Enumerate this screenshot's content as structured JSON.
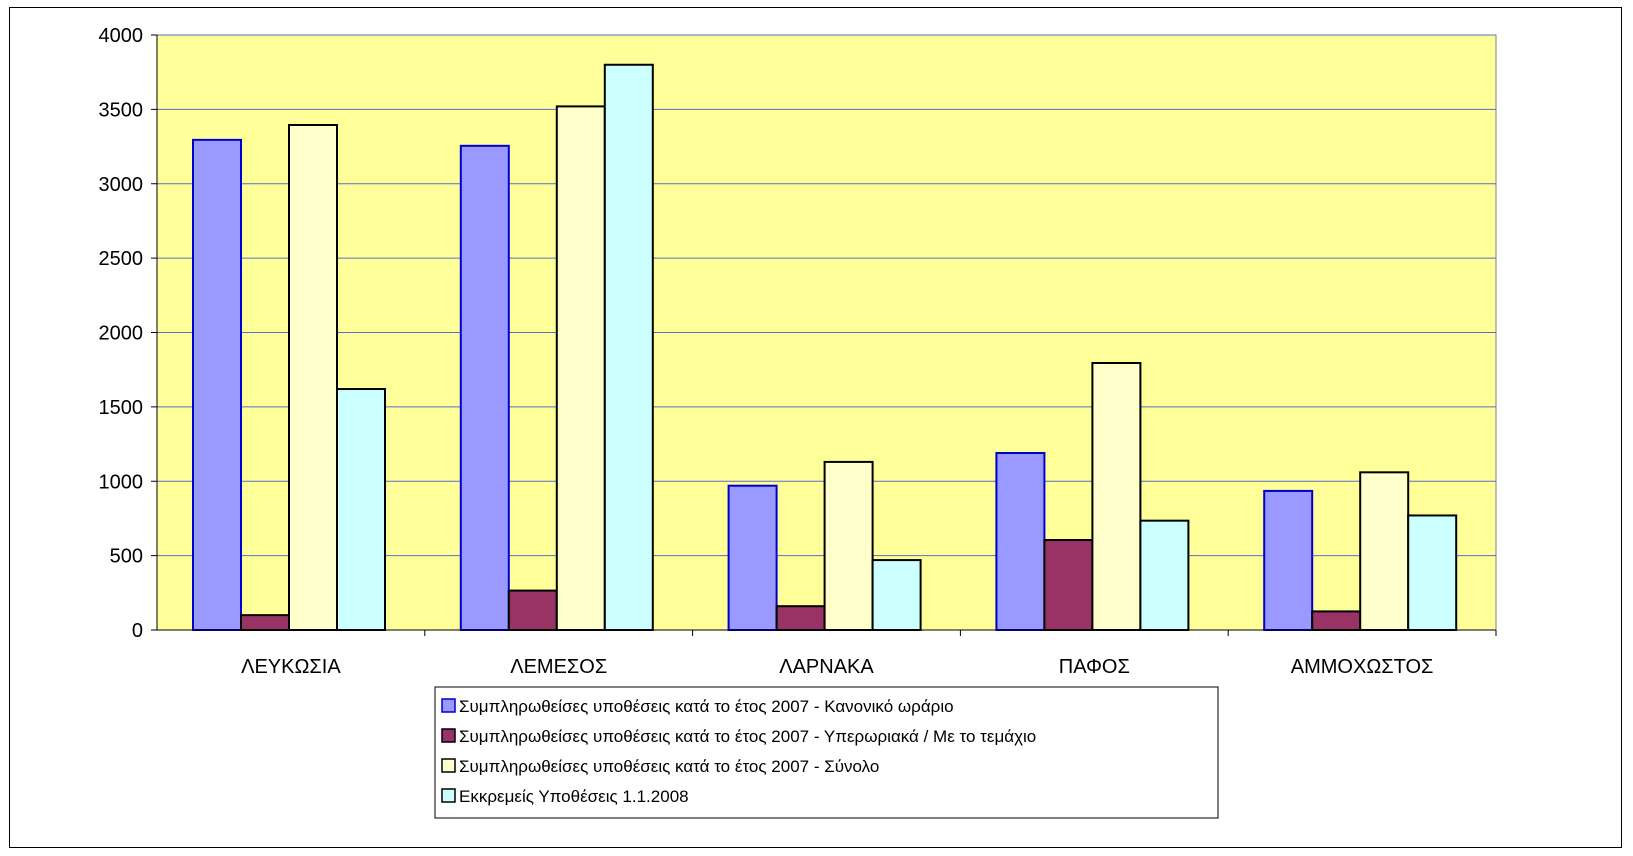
{
  "chart_data": {
    "type": "bar",
    "title": "",
    "xlabel": "",
    "ylabel": "",
    "ylim": [
      0,
      4000
    ],
    "yticks": [
      0,
      500,
      1000,
      1500,
      2000,
      2500,
      3000,
      3500,
      4000
    ],
    "grid": true,
    "legend_position": "bottom",
    "plot_background": "#FFFF99",
    "categories": [
      "ΛΕΥΚΩΣΙΑ",
      "ΛΕΜΕΣΟΣ",
      "ΛΑΡΝΑΚΑ",
      "ΠΑΦΟΣ",
      "ΑΜΜΟΧΩΣΤΟΣ"
    ],
    "series": [
      {
        "name": "Συμπληρωθείσες υποθέσεις κατά το έτος 2007 - Κανονικό ωράριο",
        "color": "#9999FF",
        "border": "#0000CC",
        "values": [
          3295,
          3255,
          970,
          1190,
          935
        ]
      },
      {
        "name": "Συμπληρωθείσες υποθέσεις κατά το έτος 2007 - Υπερωριακά / Με το τεμάχιο",
        "color": "#993366",
        "border": "#000000",
        "values": [
          100,
          265,
          160,
          605,
          125
        ]
      },
      {
        "name": "Συμπληρωθείσες υποθέσεις κατά το έτος 2007 - Σύνολο",
        "color": "#FFFFCC",
        "border": "#000000",
        "values": [
          3395,
          3520,
          1130,
          1795,
          1060
        ]
      },
      {
        "name": "Εκκρεμείς Υποθέσεις 1.1.2008",
        "color": "#CCFFFF",
        "border": "#000000",
        "values": [
          1620,
          3800,
          470,
          735,
          770
        ]
      }
    ]
  }
}
